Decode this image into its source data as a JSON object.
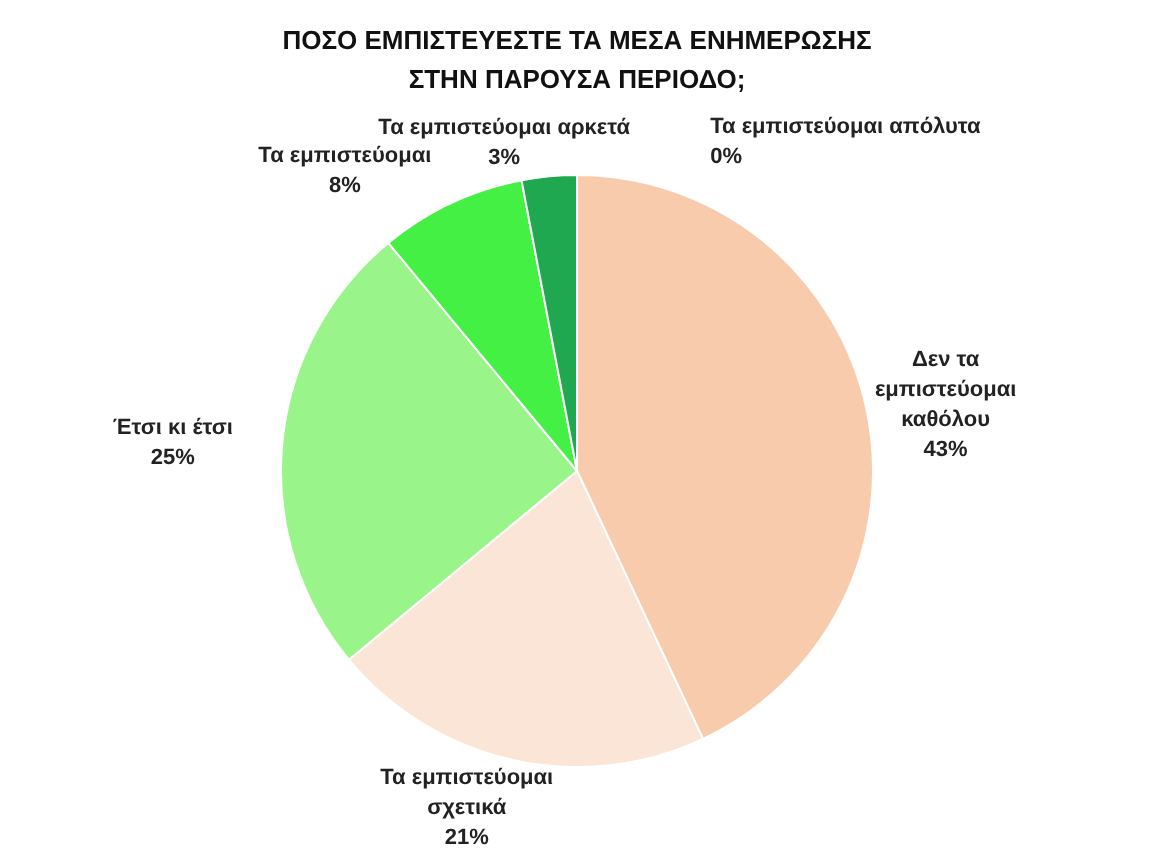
{
  "chart_data": {
    "type": "pie",
    "title": "ΠΟΣΟ ΕΜΠΙΣΤΕΥΕΣΤΕ ΤΑ ΜΕΣΑ ΕΝΗΜΕΡΩΣΗΣ ΣΤΗΝ ΠΑΡΟΥΣΑ ΠΕΡΙΟΔΟ;",
    "categories": [
      "Τα εμπιστεύομαι απόλυτα",
      "Δεν τα εμπιστεύομαι καθόλου",
      "Τα εμπιστεύομαι σχετικά",
      "Έτσι κι έτσι",
      "Τα εμπιστεύομαι",
      "Τα εμπιστεύομαι αρκετά"
    ],
    "values": [
      0,
      43,
      21,
      25,
      8,
      3
    ],
    "value_labels": [
      "0%",
      "43%",
      "21%",
      "25%",
      "8%",
      "3%"
    ],
    "colors": [
      "#00b050",
      "#f8cbad",
      "#fbe5d6",
      "#99f58a",
      "#44f044",
      "#1fa84f"
    ]
  }
}
